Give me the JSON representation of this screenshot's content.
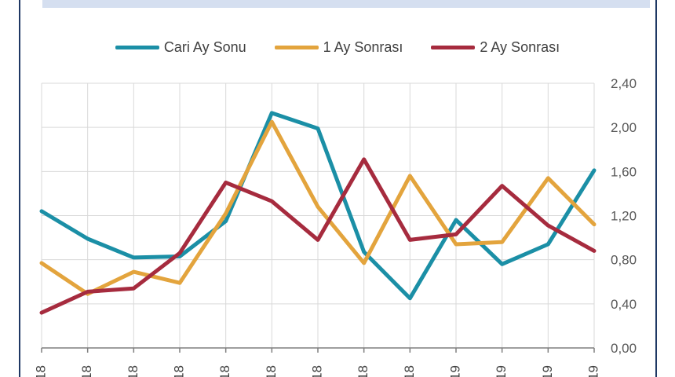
{
  "chart_data": {
    "type": "line",
    "categories": [
      "18",
      "18",
      "18",
      "18",
      "18",
      "18",
      "18",
      "18",
      "18",
      "19",
      "19",
      "19",
      "19"
    ],
    "series": [
      {
        "name": "Cari Ay Sonu",
        "color": "#1b8fa6",
        "values": [
          1.24,
          0.99,
          0.82,
          0.83,
          1.15,
          2.13,
          1.99,
          0.87,
          0.45,
          1.16,
          0.76,
          0.94,
          1.61
        ]
      },
      {
        "name": "1 Ay Sonrası",
        "color": "#e3a43d",
        "values": [
          0.77,
          0.49,
          0.69,
          0.59,
          1.22,
          2.05,
          1.28,
          0.77,
          1.56,
          0.94,
          0.96,
          1.54,
          1.12
        ]
      },
      {
        "name": "2 Ay Sonrası",
        "color": "#a62b3e",
        "values": [
          0.32,
          0.51,
          0.54,
          0.86,
          1.5,
          1.33,
          0.98,
          1.71,
          0.98,
          1.03,
          1.47,
          1.11,
          0.88
        ]
      }
    ],
    "ylim": [
      0,
      2.4
    ],
    "y_ticks": [
      "0,00",
      "0,40",
      "0,80",
      "1,20",
      "1,60",
      "2,00",
      "2,40"
    ],
    "y_axis_side": "right",
    "grid": true,
    "legend_position": "top"
  }
}
